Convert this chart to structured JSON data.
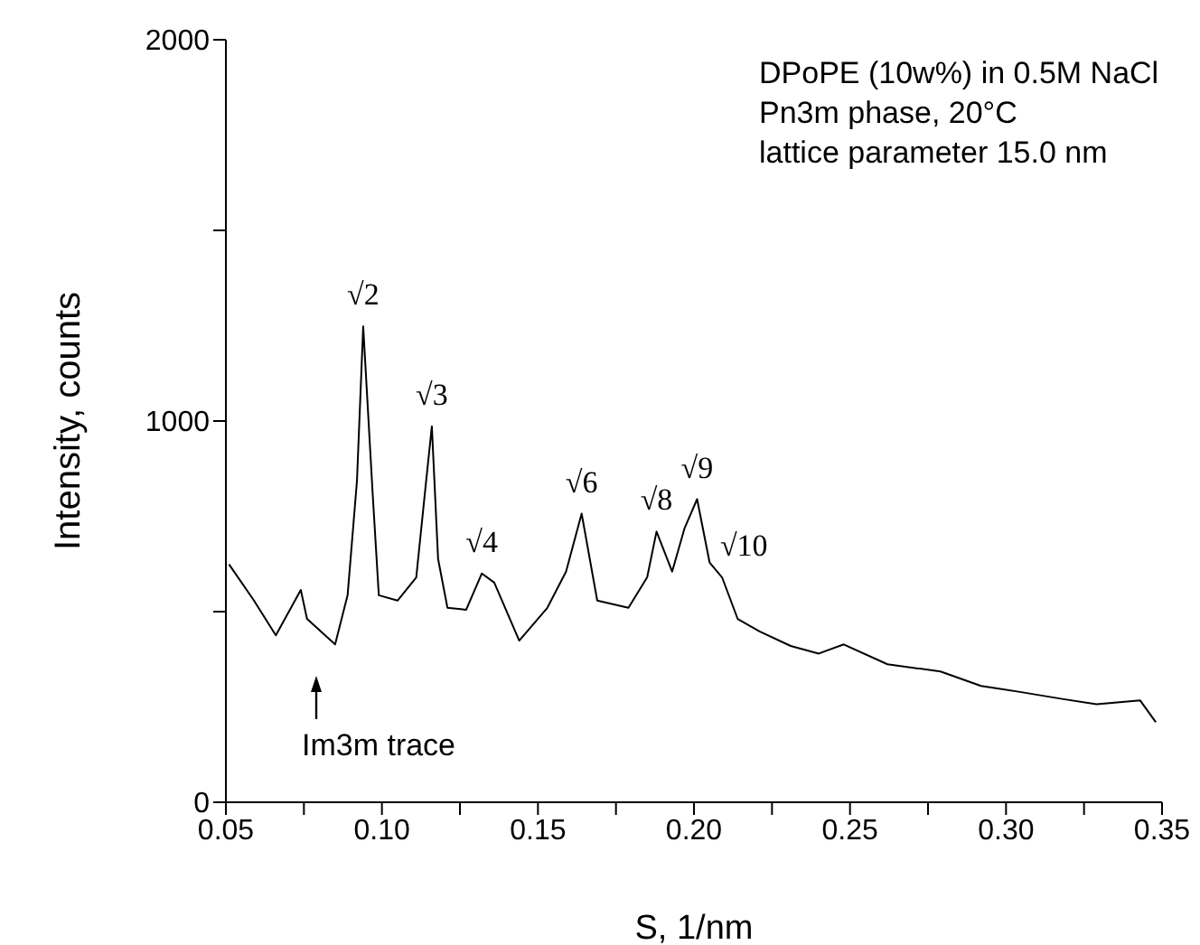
{
  "chart_data": {
    "type": "line",
    "xlabel": "S,  1/nm",
    "ylabel": "Intensity,  counts",
    "x": [
      0.051,
      0.059,
      0.066,
      0.074,
      0.076,
      0.085,
      0.089,
      0.092,
      0.094,
      0.097,
      0.099,
      0.105,
      0.111,
      0.114,
      0.116,
      0.118,
      0.121,
      0.127,
      0.132,
      0.136,
      0.144,
      0.153,
      0.159,
      0.164,
      0.169,
      0.179,
      0.185,
      0.188,
      0.193,
      0.197,
      0.201,
      0.205,
      0.209,
      0.214,
      0.221,
      0.231,
      0.24,
      0.248,
      0.262,
      0.279,
      0.292,
      0.304,
      0.318,
      0.329,
      0.343,
      0.348
    ],
    "series": [
      {
        "color": "#000000",
        "values": [
          624,
          529,
          438,
          557,
          481,
          414,
          543,
          843,
          1248,
          814,
          543,
          529,
          590,
          829,
          986,
          638,
          510,
          505,
          600,
          576,
          424,
          510,
          605,
          757,
          529,
          510,
          590,
          710,
          605,
          719,
          795,
          629,
          590,
          481,
          448,
          410,
          390,
          414,
          362,
          343,
          305,
          290,
          271,
          257,
          267,
          210
        ]
      }
    ],
    "xlim": [
      0.05,
      0.35
    ],
    "ylim": [
      0,
      2000
    ],
    "xticks": [
      {
        "value": 0.05,
        "label": "0.05"
      },
      {
        "value": 0.075,
        "label": null
      },
      {
        "value": 0.1,
        "label": "0.10"
      },
      {
        "value": 0.125,
        "label": null
      },
      {
        "value": 0.15,
        "label": "0.15"
      },
      {
        "value": 0.175,
        "label": null
      },
      {
        "value": 0.2,
        "label": "0.20"
      },
      {
        "value": 0.225,
        "label": null
      },
      {
        "value": 0.25,
        "label": "0.25"
      },
      {
        "value": 0.275,
        "label": null
      },
      {
        "value": 0.3,
        "label": "0.30"
      },
      {
        "value": 0.325,
        "label": null
      },
      {
        "value": 0.35,
        "label": "0.35"
      }
    ],
    "yticks": [
      0,
      {
        "value": 500,
        "label": null
      },
      1000,
      {
        "value": 1500,
        "label": null
      },
      2000
    ],
    "marker": "none",
    "line_style": "solid",
    "annotations": [
      "DPoPE (10w%) in 0.5M NaCl",
      "Pn3m phase, 20°C",
      "lattice parameter 15.0 nm",
      {
        "text": "√2",
        "x": 0.094,
        "y": 1248
      },
      {
        "text": "√3",
        "x": 0.116,
        "y": 986
      },
      {
        "text": "√4",
        "x": 0.132,
        "y": 600
      },
      {
        "text": "√6",
        "x": 0.164,
        "y": 757
      },
      {
        "text": "√8",
        "x": 0.188,
        "y": 710
      },
      {
        "text": "√9",
        "x": 0.201,
        "y": 795
      },
      {
        "text": "√10",
        "x": 0.216,
        "y": 470
      },
      "Im3m trace"
    ]
  }
}
